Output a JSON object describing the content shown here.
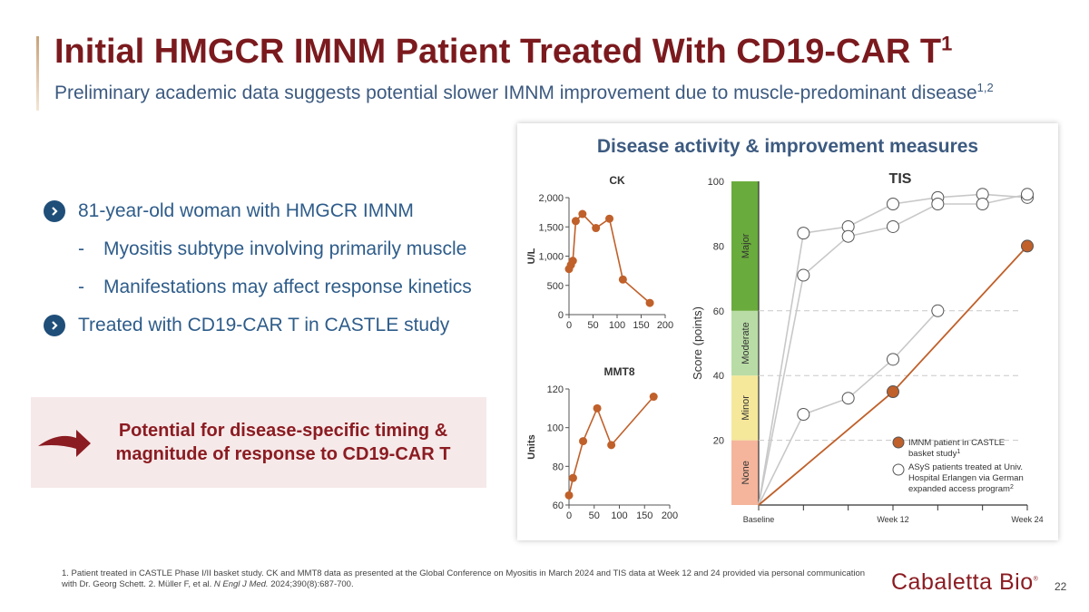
{
  "title": "Initial HMGCR IMNM Patient Treated With CD19-CAR T",
  "title_sup": "1",
  "subtitle": "Preliminary academic data suggests potential slower IMNM improvement due to muscle-predominant disease",
  "subtitle_sup": "1,2",
  "bullets": [
    {
      "level": 1,
      "text": "81-year-old woman with HMGCR IMNM"
    },
    {
      "level": 2,
      "text": "Myositis subtype involving primarily muscle"
    },
    {
      "level": 2,
      "text": "Manifestations may affect response kinetics"
    },
    {
      "level": 1,
      "text": "Treated with CD19-CAR T in CASTLE study"
    }
  ],
  "callout": {
    "line1": "Potential for disease-specific timing &",
    "line2": "magnitude of response to CD19-CAR T"
  },
  "panel_title": "Disease activity & improvement measures",
  "footnote": {
    "part1": "1. Patient treated in CASTLE Phase I/II basket study. CK and MMT8 data as presented at the Global Conference on Myositis in March 2024 and TIS data at Week 12 and 24 provided via personal communication with Dr. Georg Schett. 2. Müller F, et al. ",
    "journal": "N Engl J Med.",
    "part2": " 2024;390(8):687-700."
  },
  "logo": "Cabaletta Bio",
  "logo_mark": "®",
  "page_number": "22",
  "colors": {
    "patient": "#c0602a",
    "comparison": "#c8c8c8",
    "title": "#7b1a1e",
    "subtitle": "#3c5a80",
    "major": "#6aab3d",
    "moderate": "#b9dca6",
    "minor": "#f6e89b",
    "none": "#f4b59c"
  },
  "chart_data": [
    {
      "type": "line",
      "title": "CK",
      "ylabel": "U/L",
      "x": [
        0,
        4,
        8,
        14,
        28,
        56,
        84,
        112,
        168
      ],
      "values": [
        780,
        850,
        920,
        1600,
        1720,
        1480,
        1640,
        600,
        200
      ],
      "xlim": [
        0,
        200
      ],
      "xticks": [
        "0",
        "50",
        "100",
        "150",
        "200"
      ],
      "ylim": [
        0,
        2000
      ],
      "yticks": [
        "0",
        "500",
        "1,000",
        "1,500",
        "2,000"
      ]
    },
    {
      "type": "line",
      "title": "MMT8",
      "ylabel": "Units",
      "x": [
        0,
        8,
        28,
        56,
        84,
        168
      ],
      "values": [
        65,
        74,
        93,
        110,
        91,
        116
      ],
      "xlim": [
        0,
        200
      ],
      "xticks": [
        "0",
        "50",
        "100",
        "150",
        "200"
      ],
      "ylim": [
        60,
        120
      ],
      "yticks": [
        "60",
        "80",
        "100",
        "120"
      ]
    },
    {
      "type": "line",
      "title": "TIS",
      "ylabel": "Score (points)",
      "xticks": [
        "Baseline",
        "Week 12",
        "Week 24"
      ],
      "ylim": [
        0,
        100
      ],
      "yticks": [
        "20",
        "40",
        "60",
        "80",
        "100"
      ],
      "bands": [
        {
          "label": "None",
          "from": 0,
          "to": 20
        },
        {
          "label": "Minor",
          "from": 20,
          "to": 40
        },
        {
          "label": "Moderate",
          "from": 40,
          "to": 60
        },
        {
          "label": "Major",
          "from": 60,
          "to": 100
        }
      ],
      "series": [
        {
          "name": "IMNM patient in CASTLE basket study",
          "name_sup": "1",
          "x": [
            0,
            12,
            24
          ],
          "values": [
            0,
            35,
            80
          ]
        },
        {
          "name": "ASyS patients treated at Univ. Hospital Erlangen via German expanded access program",
          "name_sup": "2",
          "x": [
            0,
            4,
            8,
            12,
            16,
            20,
            24
          ],
          "values": [
            0,
            84,
            86,
            93,
            95,
            96,
            95
          ]
        },
        {
          "name": "ASyS patient",
          "x": [
            0,
            4,
            8,
            12,
            16,
            20,
            24
          ],
          "values": [
            0,
            71,
            83,
            86,
            93,
            93,
            96
          ]
        },
        {
          "name": "ASyS patient",
          "x": [
            0,
            4,
            8,
            12,
            16
          ],
          "values": [
            0,
            28,
            33,
            45,
            60
          ]
        }
      ],
      "legend": [
        {
          "lines": [
            "IMNM patient in CASTLE",
            "basket study"
          ],
          "sup": "1"
        },
        {
          "lines": [
            "ASyS patients treated at Univ.",
            "Hospital Erlangen via German",
            "expanded access program"
          ],
          "sup": "2"
        }
      ]
    }
  ]
}
